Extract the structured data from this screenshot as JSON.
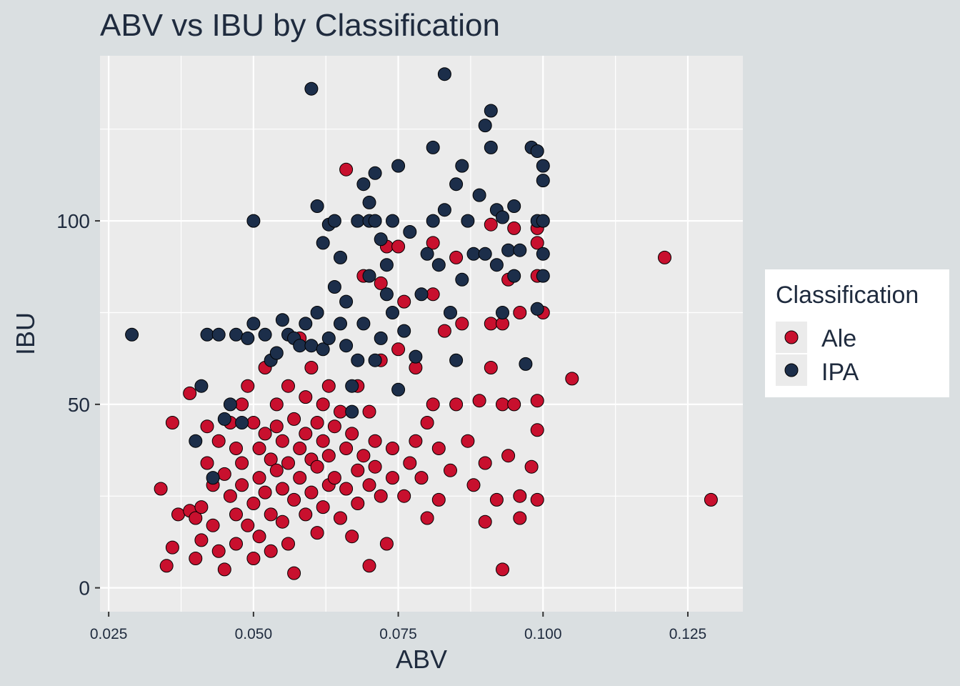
{
  "chart_data": {
    "type": "scatter",
    "title": "ABV vs IBU by Classification",
    "xlabel": "ABV",
    "ylabel": "IBU",
    "xlim": [
      0.0235,
      0.1345
    ],
    "ylim": [
      -6.5,
      145
    ],
    "x_ticks": [
      0.025,
      0.05,
      0.075,
      0.1,
      0.125
    ],
    "x_tick_labels": [
      "0.025",
      "0.050",
      "0.075",
      "0.100",
      "0.125"
    ],
    "y_ticks": [
      0,
      50,
      100
    ],
    "y_tick_labels": [
      "0",
      "50",
      "100"
    ],
    "grid": true,
    "legend": {
      "title": "Classification",
      "position": "right"
    },
    "series": [
      {
        "name": "Ale",
        "color": "#c8102e",
        "points": [
          [
            0.034,
            27
          ],
          [
            0.035,
            6
          ],
          [
            0.036,
            11
          ],
          [
            0.036,
            45
          ],
          [
            0.037,
            20
          ],
          [
            0.039,
            53
          ],
          [
            0.039,
            21
          ],
          [
            0.04,
            8
          ],
          [
            0.04,
            19
          ],
          [
            0.041,
            22
          ],
          [
            0.041,
            13
          ],
          [
            0.042,
            34
          ],
          [
            0.042,
            44
          ],
          [
            0.043,
            28
          ],
          [
            0.043,
            17
          ],
          [
            0.044,
            10
          ],
          [
            0.044,
            40
          ],
          [
            0.045,
            5
          ],
          [
            0.045,
            31
          ],
          [
            0.046,
            25
          ],
          [
            0.046,
            45
          ],
          [
            0.047,
            20
          ],
          [
            0.047,
            38
          ],
          [
            0.047,
            12
          ],
          [
            0.048,
            34
          ],
          [
            0.048,
            50
          ],
          [
            0.048,
            28
          ],
          [
            0.049,
            55
          ],
          [
            0.049,
            17
          ],
          [
            0.05,
            45
          ],
          [
            0.05,
            23
          ],
          [
            0.05,
            8
          ],
          [
            0.051,
            38
          ],
          [
            0.051,
            30
          ],
          [
            0.051,
            14
          ],
          [
            0.052,
            60
          ],
          [
            0.052,
            42
          ],
          [
            0.052,
            26
          ],
          [
            0.053,
            35
          ],
          [
            0.053,
            20
          ],
          [
            0.053,
            10
          ],
          [
            0.054,
            50
          ],
          [
            0.054,
            32
          ],
          [
            0.054,
            44
          ],
          [
            0.055,
            27
          ],
          [
            0.055,
            18
          ],
          [
            0.055,
            40
          ],
          [
            0.056,
            55
          ],
          [
            0.056,
            34
          ],
          [
            0.056,
            12
          ],
          [
            0.057,
            4
          ],
          [
            0.057,
            46
          ],
          [
            0.057,
            24
          ],
          [
            0.058,
            38
          ],
          [
            0.058,
            68
          ],
          [
            0.058,
            30
          ],
          [
            0.059,
            52
          ],
          [
            0.059,
            20
          ],
          [
            0.059,
            42
          ],
          [
            0.06,
            35
          ],
          [
            0.06,
            26
          ],
          [
            0.06,
            60
          ],
          [
            0.061,
            45
          ],
          [
            0.061,
            15
          ],
          [
            0.061,
            33
          ],
          [
            0.062,
            50
          ],
          [
            0.062,
            40
          ],
          [
            0.062,
            22
          ],
          [
            0.063,
            36
          ],
          [
            0.063,
            28
          ],
          [
            0.063,
            55
          ],
          [
            0.064,
            44
          ],
          [
            0.064,
            30
          ],
          [
            0.065,
            19
          ],
          [
            0.065,
            48
          ],
          [
            0.066,
            38
          ],
          [
            0.066,
            114
          ],
          [
            0.066,
            27
          ],
          [
            0.067,
            14
          ],
          [
            0.067,
            42
          ],
          [
            0.068,
            32
          ],
          [
            0.068,
            23
          ],
          [
            0.068,
            55
          ],
          [
            0.069,
            36
          ],
          [
            0.069,
            85
          ],
          [
            0.07,
            6
          ],
          [
            0.07,
            28
          ],
          [
            0.07,
            48
          ],
          [
            0.071,
            40
          ],
          [
            0.071,
            33
          ],
          [
            0.072,
            83
          ],
          [
            0.072,
            62
          ],
          [
            0.072,
            25
          ],
          [
            0.073,
            93
          ],
          [
            0.073,
            12
          ],
          [
            0.074,
            38
          ],
          [
            0.074,
            30
          ],
          [
            0.075,
            93
          ],
          [
            0.075,
            65
          ],
          [
            0.076,
            78
          ],
          [
            0.076,
            25
          ],
          [
            0.077,
            34
          ],
          [
            0.078,
            40
          ],
          [
            0.078,
            60
          ],
          [
            0.079,
            30
          ],
          [
            0.08,
            45
          ],
          [
            0.08,
            19
          ],
          [
            0.081,
            94
          ],
          [
            0.081,
            80
          ],
          [
            0.081,
            50
          ],
          [
            0.082,
            24
          ],
          [
            0.082,
            38
          ],
          [
            0.083,
            70
          ],
          [
            0.084,
            32
          ],
          [
            0.085,
            90
          ],
          [
            0.085,
            50
          ],
          [
            0.086,
            72
          ],
          [
            0.087,
            40
          ],
          [
            0.088,
            28
          ],
          [
            0.089,
            51
          ],
          [
            0.09,
            34
          ],
          [
            0.09,
            18
          ],
          [
            0.091,
            99
          ],
          [
            0.091,
            72
          ],
          [
            0.091,
            60
          ],
          [
            0.092,
            24
          ],
          [
            0.093,
            72
          ],
          [
            0.093,
            50
          ],
          [
            0.093,
            5
          ],
          [
            0.094,
            84
          ],
          [
            0.094,
            36
          ],
          [
            0.095,
            98
          ],
          [
            0.095,
            50
          ],
          [
            0.096,
            19
          ],
          [
            0.096,
            25
          ],
          [
            0.096,
            75
          ],
          [
            0.098,
            33
          ],
          [
            0.099,
            98
          ],
          [
            0.099,
            94
          ],
          [
            0.099,
            85
          ],
          [
            0.099,
            51
          ],
          [
            0.099,
            43
          ],
          [
            0.099,
            24
          ],
          [
            0.1,
            75
          ],
          [
            0.105,
            57
          ],
          [
            0.121,
            90
          ],
          [
            0.129,
            24
          ]
        ]
      },
      {
        "name": "IPA",
        "color": "#1c2e4a",
        "points": [
          [
            0.029,
            69
          ],
          [
            0.04,
            40
          ],
          [
            0.041,
            55
          ],
          [
            0.042,
            69
          ],
          [
            0.043,
            30
          ],
          [
            0.044,
            69
          ],
          [
            0.045,
            46
          ],
          [
            0.046,
            50
          ],
          [
            0.047,
            69
          ],
          [
            0.048,
            45
          ],
          [
            0.049,
            68
          ],
          [
            0.05,
            72
          ],
          [
            0.05,
            100
          ],
          [
            0.052,
            69
          ],
          [
            0.053,
            62
          ],
          [
            0.054,
            64
          ],
          [
            0.055,
            73
          ],
          [
            0.056,
            69
          ],
          [
            0.057,
            68
          ],
          [
            0.058,
            66
          ],
          [
            0.059,
            72
          ],
          [
            0.06,
            136
          ],
          [
            0.06,
            66
          ],
          [
            0.061,
            104
          ],
          [
            0.061,
            75
          ],
          [
            0.062,
            65
          ],
          [
            0.062,
            94
          ],
          [
            0.063,
            99
          ],
          [
            0.063,
            68
          ],
          [
            0.064,
            100
          ],
          [
            0.064,
            82
          ],
          [
            0.065,
            72
          ],
          [
            0.065,
            90
          ],
          [
            0.066,
            78
          ],
          [
            0.066,
            66
          ],
          [
            0.067,
            55
          ],
          [
            0.067,
            48
          ],
          [
            0.068,
            100
          ],
          [
            0.068,
            62
          ],
          [
            0.069,
            110
          ],
          [
            0.069,
            72
          ],
          [
            0.07,
            105
          ],
          [
            0.07,
            100
          ],
          [
            0.07,
            85
          ],
          [
            0.071,
            113
          ],
          [
            0.071,
            62
          ],
          [
            0.071,
            100
          ],
          [
            0.072,
            95
          ],
          [
            0.072,
            68
          ],
          [
            0.073,
            80
          ],
          [
            0.073,
            88
          ],
          [
            0.074,
            75
          ],
          [
            0.074,
            100
          ],
          [
            0.075,
            115
          ],
          [
            0.075,
            54
          ],
          [
            0.076,
            70
          ],
          [
            0.077,
            97
          ],
          [
            0.078,
            63
          ],
          [
            0.079,
            80
          ],
          [
            0.08,
            91
          ],
          [
            0.081,
            120
          ],
          [
            0.081,
            100
          ],
          [
            0.082,
            88
          ],
          [
            0.083,
            103
          ],
          [
            0.083,
            140
          ],
          [
            0.084,
            75
          ],
          [
            0.085,
            110
          ],
          [
            0.085,
            62
          ],
          [
            0.086,
            115
          ],
          [
            0.086,
            84
          ],
          [
            0.087,
            100
          ],
          [
            0.088,
            91
          ],
          [
            0.089,
            107
          ],
          [
            0.09,
            126
          ],
          [
            0.09,
            91
          ],
          [
            0.091,
            130
          ],
          [
            0.091,
            120
          ],
          [
            0.092,
            103
          ],
          [
            0.092,
            88
          ],
          [
            0.093,
            101
          ],
          [
            0.093,
            75
          ],
          [
            0.094,
            92
          ],
          [
            0.095,
            104
          ],
          [
            0.095,
            85
          ],
          [
            0.096,
            92
          ],
          [
            0.097,
            61
          ],
          [
            0.098,
            120
          ],
          [
            0.099,
            119
          ],
          [
            0.099,
            100
          ],
          [
            0.099,
            76
          ],
          [
            0.1,
            115
          ],
          [
            0.1,
            111
          ],
          [
            0.1,
            100
          ],
          [
            0.1,
            91
          ],
          [
            0.1,
            85
          ]
        ]
      }
    ]
  }
}
